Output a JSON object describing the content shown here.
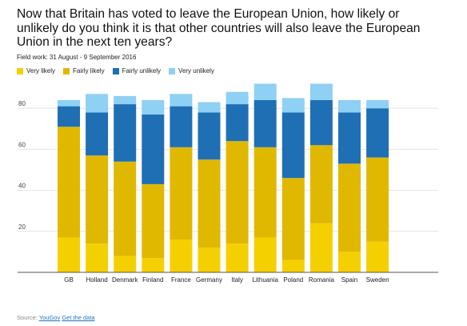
{
  "title": "Now that Britain has voted to leave the European Union, how likely or unlikely do you think it is that other countries will also leave the European Union in the next ten years?",
  "subtitle": "Field work: 31 August - 9 September 2016",
  "source": {
    "label": "Source:",
    "link1": "YouGov",
    "link2": "Get the data"
  },
  "colors": {
    "very_likely": "#f5d000",
    "fairly_likely": "#e0b800",
    "fairly_unlikely": "#1f6fb5",
    "very_unlikely": "#8fd0f5"
  },
  "chart_data": {
    "type": "bar",
    "stacked": true,
    "categories": [
      "GB",
      "Holland",
      "Denmark",
      "Finland",
      "France",
      "Germany",
      "Italy",
      "Lithuania",
      "Poland",
      "Romania",
      "Spain",
      "Sweden"
    ],
    "series": [
      {
        "name": "Very likely",
        "color": "#f5d000",
        "values": [
          17,
          14,
          8,
          7,
          16,
          12,
          14,
          17,
          6,
          24,
          10,
          15
        ]
      },
      {
        "name": "Fairly likely",
        "color": "#e0b800",
        "values": [
          54,
          43,
          46,
          36,
          45,
          43,
          50,
          44,
          40,
          38,
          43,
          41
        ]
      },
      {
        "name": "Fairly unlikely",
        "color": "#1f6fb5",
        "values": [
          10,
          21,
          28,
          34,
          20,
          23,
          18,
          23,
          32,
          22,
          25,
          24
        ]
      },
      {
        "name": "Very unlikely",
        "color": "#8fd0f5",
        "values": [
          3,
          9,
          4,
          7,
          6,
          5,
          6,
          8,
          7,
          8,
          6,
          4
        ]
      }
    ],
    "y_ticks": [
      20,
      40,
      60,
      80
    ],
    "ylim": [
      0,
      100
    ],
    "grid": true,
    "legend_position": "top-left"
  }
}
